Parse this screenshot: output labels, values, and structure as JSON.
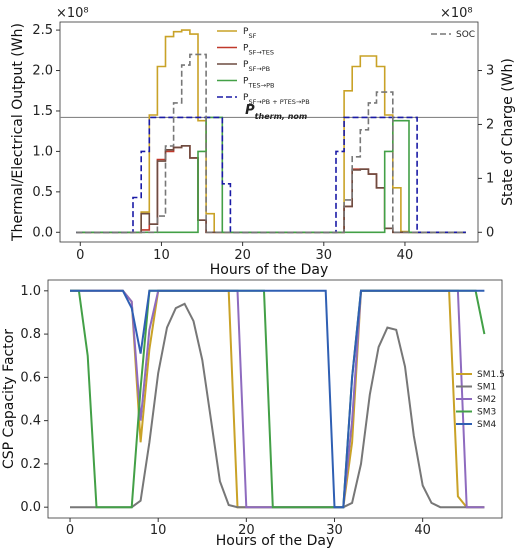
{
  "chart_data": [
    {
      "type": "line",
      "title": "",
      "xlabel": "Hours of the Day",
      "ylabel": "Thermal/Electrical Output (Wh)",
      "ylabel_right": "State of Charge (Wh)",
      "xlim": [
        -2.5,
        49
      ],
      "ylim": [
        -0.12,
        2.6
      ],
      "ylim_right": [
        -0.18,
        3.9
      ],
      "x_ticks": [
        0,
        10,
        20,
        30,
        40
      ],
      "y_ticks": [
        0.0,
        0.5,
        1.0,
        1.5,
        2.0,
        2.5
      ],
      "y_tick_labels": [
        "0.0",
        "0.5",
        "1.0",
        "1.5",
        "2.0",
        "2.5"
      ],
      "y_ticks_right": [
        0,
        1,
        2,
        3
      ],
      "y_tick_labels_right": [
        "0",
        "1",
        "2",
        "3"
      ],
      "y_multiplier_left": "×10⁸",
      "y_multiplier_right": "×10⁸",
      "grid": false,
      "legend_left": "top-center",
      "legend_right": "top-right",
      "annotation": {
        "text": "P",
        "sub": "therm, nom",
        "x": 16,
        "y": 1.45
      },
      "reference_line": {
        "y": 1.42
      },
      "x": [
        0,
        1,
        2,
        3,
        4,
        5,
        6,
        7,
        8,
        9,
        10,
        11,
        12,
        13,
        14,
        15,
        16,
        17,
        18,
        19,
        20,
        21,
        22,
        23,
        24,
        25,
        26,
        27,
        28,
        29,
        30,
        31,
        32,
        33,
        34,
        35,
        36,
        37,
        38,
        39,
        40,
        41,
        42,
        43,
        44,
        45,
        46,
        47
      ],
      "series": [
        {
          "name": "P",
          "sub": "SF",
          "axis": "left",
          "color": "#c9a227",
          "dash": "",
          "values": [
            0,
            0,
            0,
            0,
            0,
            0,
            0,
            0,
            0.25,
            1.45,
            2.05,
            2.42,
            2.48,
            2.5,
            2.45,
            1.38,
            0.23,
            0,
            0,
            0,
            0,
            0,
            0,
            0,
            0,
            0,
            0,
            0,
            0,
            0,
            0,
            0,
            0,
            1.75,
            2.05,
            2.18,
            2.18,
            2.05,
            1.45,
            0.55,
            0.01,
            0,
            0,
            0,
            0,
            0,
            0,
            0
          ]
        },
        {
          "name": "P",
          "sub": "SF→TES",
          "axis": "left",
          "color": "#c0392b",
          "dash": "",
          "values": [
            0,
            0,
            0,
            0,
            0,
            0,
            0,
            0,
            0.03,
            0.1,
            0.9,
            1.0,
            1.05,
            1.07,
            0.92,
            0.15,
            0,
            0,
            0,
            0,
            0,
            0,
            0,
            0,
            0,
            0,
            0,
            0,
            0,
            0,
            0,
            0,
            0,
            0.32,
            0.78,
            0.78,
            0.72,
            0.55,
            0.05,
            0,
            0,
            0,
            0,
            0,
            0,
            0,
            0,
            0
          ]
        },
        {
          "name": "P",
          "sub": "SF→PB",
          "axis": "left",
          "color": "#6d4c41",
          "dash": "",
          "values": [
            0,
            0,
            0,
            0,
            0,
            0,
            0,
            0,
            0.23,
            0.1,
            0.88,
            1.02,
            1.05,
            1.07,
            0.92,
            0.15,
            0,
            0,
            0,
            0,
            0,
            0,
            0,
            0,
            0,
            0,
            0,
            0,
            0,
            0,
            0,
            0,
            0,
            0.32,
            0.77,
            0.78,
            0.72,
            0.55,
            0.05,
            0,
            0,
            0,
            0,
            0,
            0,
            0,
            0,
            0
          ]
        },
        {
          "name": "P",
          "sub": "TES→PB",
          "axis": "left",
          "color": "#43a047",
          "dash": "",
          "values": [
            0,
            0,
            0,
            0,
            0,
            0,
            0,
            0,
            0,
            0,
            0,
            0,
            0,
            0,
            0,
            1.0,
            1.42,
            1.42,
            0,
            0,
            0,
            0,
            0,
            0,
            0,
            0,
            0,
            0,
            0,
            0,
            0,
            0,
            0,
            0,
            0,
            0,
            0,
            0,
            1.0,
            1.38,
            1.38,
            0,
            0,
            0,
            0,
            0,
            0,
            0
          ]
        },
        {
          "name": "P",
          "sub": "SF→PB + P",
          "sub2": "TES→PB",
          "axis": "left",
          "color": "#1a1aa6",
          "dash": "6,3",
          "values": [
            0,
            0,
            0,
            0,
            0,
            0,
            0,
            0.43,
            1.0,
            1.42,
            1.42,
            1.42,
            1.42,
            1.42,
            1.42,
            1.42,
            1.42,
            1.42,
            0.6,
            0,
            0,
            0,
            0,
            0,
            0,
            0,
            0,
            0,
            0,
            0,
            0,
            0,
            1.0,
            1.42,
            1.42,
            1.42,
            1.42,
            1.42,
            1.42,
            1.42,
            1.42,
            1.42,
            0,
            0,
            0,
            0,
            0,
            0
          ]
        },
        {
          "name": "SOC",
          "sub": "",
          "axis": "right",
          "color": "#777777",
          "dash": "6,3",
          "values": [
            0,
            0,
            0,
            0,
            0,
            0,
            0,
            0,
            0,
            0,
            0.3,
            1.6,
            2.4,
            3.1,
            3.3,
            3.3,
            0,
            0,
            0,
            0,
            0,
            0,
            0,
            0,
            0,
            0,
            0,
            0,
            0,
            0,
            0,
            0,
            0,
            0.6,
            1.4,
            1.9,
            2.4,
            2.6,
            2.6,
            0,
            0,
            0,
            0,
            0,
            0,
            0,
            0,
            0
          ]
        }
      ]
    },
    {
      "type": "line",
      "title": "",
      "xlabel": "Hours of the Day",
      "ylabel": "CSP Capacity Factor",
      "xlim": [
        -2.5,
        49
      ],
      "ylim": [
        -0.05,
        1.05
      ],
      "x_ticks": [
        0,
        10,
        20,
        30,
        40
      ],
      "y_ticks": [
        0.0,
        0.2,
        0.4,
        0.6,
        0.8,
        1.0
      ],
      "y_tick_labels": [
        "0.0",
        "0.2",
        "0.4",
        "0.6",
        "0.8",
        "1.0"
      ],
      "grid": false,
      "legend": "center-right",
      "x": [
        0,
        1,
        2,
        3,
        4,
        5,
        6,
        7,
        8,
        9,
        10,
        11,
        12,
        13,
        14,
        15,
        16,
        17,
        18,
        19,
        20,
        21,
        22,
        23,
        24,
        25,
        26,
        27,
        28,
        29,
        30,
        31,
        32,
        33,
        34,
        35,
        36,
        37,
        38,
        39,
        40,
        41,
        42,
        43,
        44,
        45,
        46,
        47
      ],
      "series": [
        {
          "name": "SM1.5",
          "color": "#c9a227",
          "values": [
            1,
            1,
            1,
            1,
            1,
            1,
            1,
            0.95,
            0.3,
            0.73,
            1,
            1,
            1,
            1,
            1,
            1,
            1,
            1,
            1,
            0,
            0,
            0,
            0,
            0,
            0,
            0,
            0,
            0,
            0,
            0,
            0,
            0,
            0.3,
            1,
            1,
            1,
            1,
            1,
            1,
            1,
            1,
            1,
            1,
            1,
            0.05,
            0,
            0,
            0
          ]
        },
        {
          "name": "SM1",
          "color": "#777777",
          "values": [
            0,
            0,
            0,
            0,
            0,
            0,
            0,
            0,
            0.03,
            0.3,
            0.62,
            0.83,
            0.92,
            0.94,
            0.86,
            0.68,
            0.4,
            0.12,
            0.01,
            0,
            0,
            0,
            0,
            0,
            0,
            0,
            0,
            0,
            0,
            0,
            0,
            0,
            0.02,
            0.2,
            0.52,
            0.74,
            0.83,
            0.82,
            0.65,
            0.33,
            0.1,
            0.02,
            0,
            0,
            0,
            0,
            0,
            0
          ]
        },
        {
          "name": "SM2",
          "color": "#8e6bbf",
          "values": [
            1,
            1,
            1,
            1,
            1,
            1,
            1,
            0.95,
            0.4,
            0.82,
            1,
            1,
            1,
            1,
            1,
            1,
            1,
            1,
            1,
            1,
            0,
            0,
            0,
            0,
            0,
            0,
            0,
            0,
            0,
            0,
            0,
            0,
            0.4,
            1,
            1,
            1,
            1,
            1,
            1,
            1,
            1,
            1,
            1,
            1,
            1,
            0,
            0,
            0
          ]
        },
        {
          "name": "SM3",
          "color": "#43a047",
          "values": [
            1,
            1,
            0.7,
            0,
            0,
            0,
            0,
            0,
            0.55,
            1,
            1,
            1,
            1,
            1,
            1,
            1,
            1,
            1,
            1,
            1,
            1,
            1,
            1,
            0,
            0,
            0,
            0,
            0,
            0,
            0,
            0,
            0,
            0.6,
            1,
            1,
            1,
            1,
            1,
            1,
            1,
            1,
            1,
            1,
            1,
            1,
            1,
            1,
            0.8
          ]
        },
        {
          "name": "SM4",
          "color": "#2f5fb3",
          "values": [
            1,
            1,
            1,
            1,
            1,
            1,
            1,
            0.92,
            0.71,
            1,
            1,
            1,
            1,
            1,
            1,
            1,
            1,
            1,
            1,
            1,
            1,
            1,
            1,
            1,
            1,
            1,
            1,
            1,
            1,
            1,
            0,
            0,
            0.6,
            1,
            1,
            1,
            1,
            1,
            1,
            1,
            1,
            1,
            1,
            1,
            1,
            1,
            1,
            1
          ]
        }
      ]
    }
  ]
}
